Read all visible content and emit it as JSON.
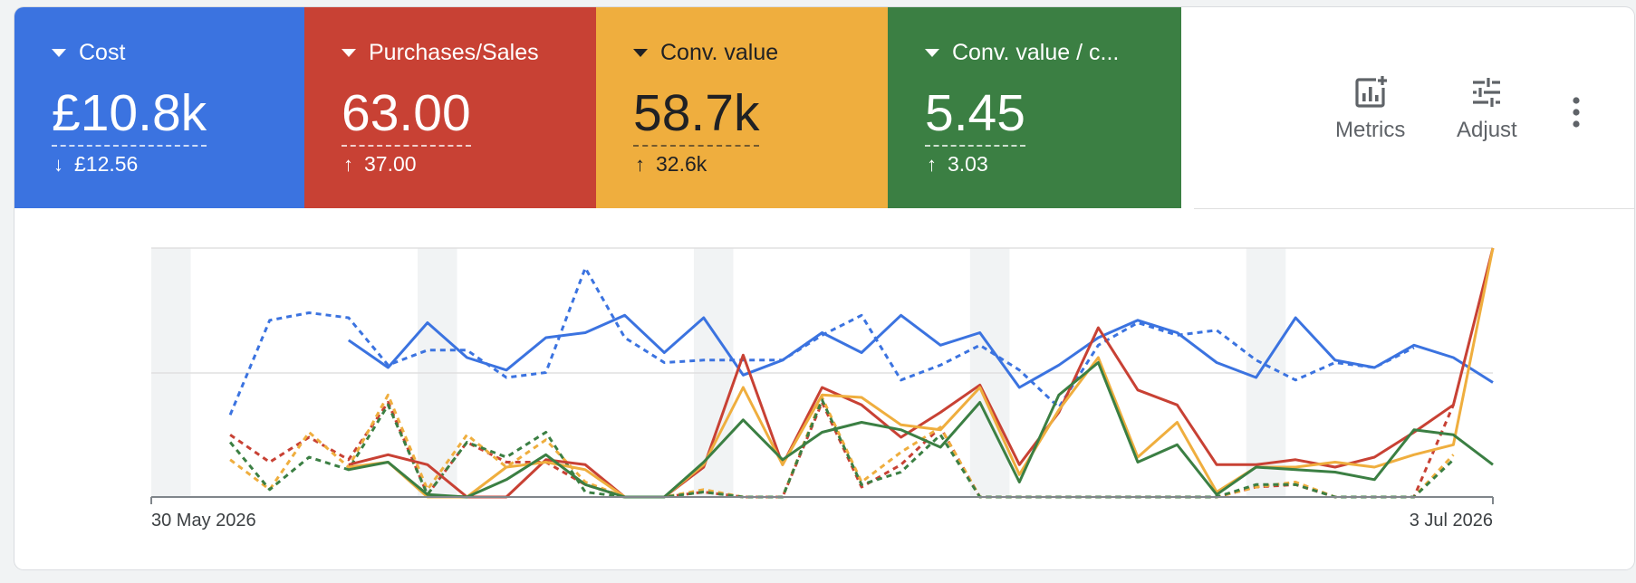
{
  "tiles": [
    {
      "title": "Cost",
      "value": "£10.8k",
      "delta_arrow": "↓",
      "delta": "£12.56",
      "color": "#3b73e0",
      "text_color": "#ffffff"
    },
    {
      "title": "Purchases/Sales",
      "value": "63.00",
      "delta_arrow": "↑",
      "delta": "37.00",
      "color": "#c84134",
      "text_color": "#ffffff"
    },
    {
      "title": "Conv. value",
      "value": "58.7k",
      "delta_arrow": "↑",
      "delta": "32.6k",
      "color": "#efae3e",
      "text_color": "#202124"
    },
    {
      "title": "Conv. value / c...",
      "value": "5.45",
      "delta_arrow": "↑",
      "delta": "3.03",
      "color": "#3b7f43",
      "text_color": "#ffffff"
    }
  ],
  "toolbar": {
    "metrics_label": "Metrics",
    "adjust_label": "Adjust",
    "metrics_icon": "metrics-add-icon",
    "adjust_icon": "tune-icon",
    "more_icon": "more-vert-icon"
  },
  "chart_data": {
    "type": "line",
    "x_start_label": "30 May 2026",
    "x_end_label": "3 Jul 2026",
    "x_count": 35,
    "grid": true,
    "weekend_bands": true,
    "y_max": 100,
    "series": [
      {
        "metric": "Cost",
        "period": "current",
        "style": "solid",
        "color": "#3b73e0",
        "values": [
          null,
          null,
          null,
          null,
          null,
          63,
          52,
          70,
          56,
          51,
          64,
          66,
          73,
          58,
          72,
          49,
          55,
          66,
          58,
          73,
          61,
          66,
          44,
          53,
          64,
          71,
          66,
          54,
          48,
          72,
          55,
          52,
          61,
          56,
          46
        ]
      },
      {
        "metric": "Cost",
        "period": "comparison",
        "style": "dashed",
        "color": "#3b73e0",
        "values": [
          null,
          null,
          33,
          71,
          74,
          72,
          53,
          59,
          59,
          48,
          50,
          92,
          64,
          54,
          55,
          55,
          55,
          65,
          73,
          47,
          53,
          61,
          51,
          36,
          61,
          70,
          65,
          67,
          55,
          47,
          54,
          52,
          60,
          null,
          null
        ]
      },
      {
        "metric": "Purchases/Sales",
        "period": "current",
        "style": "solid",
        "color": "#c84134",
        "values": [
          null,
          null,
          null,
          null,
          null,
          13,
          17,
          13,
          0,
          0,
          15,
          13,
          0,
          0,
          12,
          57,
          13,
          44,
          37,
          24,
          34,
          45,
          13,
          34,
          68,
          43,
          37,
          13,
          13,
          15,
          12,
          16,
          26,
          37,
          100
        ]
      },
      {
        "metric": "Purchases/Sales",
        "period": "comparison",
        "style": "dashed",
        "color": "#c84134",
        "values": [
          null,
          null,
          25,
          14,
          24,
          15,
          38,
          1,
          22,
          14,
          14,
          5,
          0,
          0,
          2,
          0,
          0,
          38,
          4,
          13,
          28,
          0,
          0,
          0,
          0,
          0,
          0,
          0,
          4,
          5,
          0,
          0,
          0,
          37,
          null
        ]
      },
      {
        "metric": "Conv. value",
        "period": "current",
        "style": "solid",
        "color": "#efae3e",
        "values": [
          null,
          null,
          null,
          null,
          null,
          12,
          14,
          0,
          0,
          12,
          14,
          11,
          0,
          0,
          13,
          44,
          13,
          41,
          40,
          29,
          27,
          44,
          9,
          35,
          56,
          16,
          30,
          2,
          12,
          12,
          14,
          12,
          17,
          21,
          100
        ]
      },
      {
        "metric": "Conv. value",
        "period": "comparison",
        "style": "dashed",
        "color": "#efae3e",
        "values": [
          null,
          null,
          15,
          3,
          26,
          12,
          41,
          3,
          25,
          12,
          23,
          6,
          0,
          0,
          3,
          0,
          0,
          40,
          6,
          18,
          28,
          0,
          0,
          0,
          0,
          0,
          0,
          0,
          4,
          6,
          0,
          0,
          0,
          17,
          null
        ]
      },
      {
        "metric": "Conv. value / conv.",
        "period": "current",
        "style": "solid",
        "color": "#3b7f43",
        "values": [
          null,
          null,
          null,
          null,
          null,
          11,
          14,
          1,
          0,
          7,
          17,
          5,
          0,
          0,
          14,
          31,
          15,
          26,
          30,
          27,
          20,
          38,
          6,
          41,
          54,
          14,
          21,
          1,
          12,
          11,
          10,
          7,
          27,
          25,
          13
        ]
      },
      {
        "metric": "Conv. value / conv.",
        "period": "comparison",
        "style": "dashed",
        "color": "#3b7f43",
        "values": [
          null,
          null,
          22,
          3,
          16,
          11,
          37,
          1,
          22,
          16,
          26,
          2,
          0,
          0,
          2,
          0,
          0,
          39,
          5,
          10,
          25,
          0,
          0,
          0,
          0,
          0,
          0,
          0,
          5,
          5,
          0,
          0,
          0,
          15,
          null
        ]
      }
    ]
  }
}
